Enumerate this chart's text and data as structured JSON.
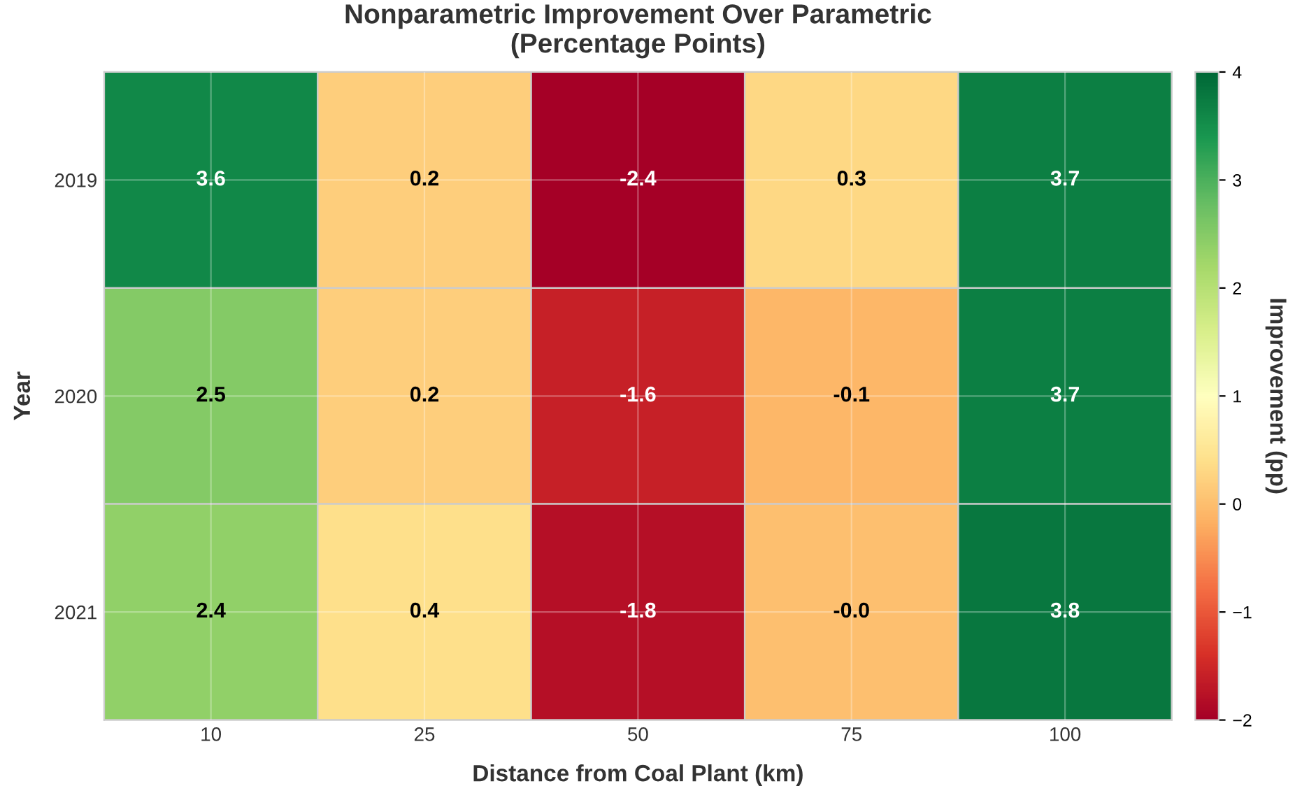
{
  "chart_data": {
    "type": "heatmap",
    "title": "Nonparametric Improvement Over Parametric\n(Percentage Points)",
    "xlabel": "Distance from Coal Plant (km)",
    "ylabel": "Year",
    "clabel": "Improvement (pp)",
    "categories": [
      "10",
      "25",
      "50",
      "75",
      "100"
    ],
    "y_categories": [
      "2019",
      "2020",
      "2021"
    ],
    "cells": [
      [
        3.6,
        0.2,
        -2.4,
        0.3,
        3.7
      ],
      [
        2.5,
        0.2,
        -1.6,
        -0.1,
        3.7
      ],
      [
        2.4,
        0.4,
        -1.8,
        -0.0,
        3.8
      ]
    ],
    "cell_labels": [
      [
        "3.6",
        "0.2",
        "-2.4",
        "0.3",
        "3.7"
      ],
      [
        "2.5",
        "0.2",
        "-1.6",
        "-0.1",
        "3.7"
      ],
      [
        "2.4",
        "0.4",
        "-1.8",
        "-0.0",
        "3.8"
      ]
    ],
    "clim": [
      -2,
      4
    ],
    "cticks": [
      -2,
      -1,
      0,
      1,
      2,
      3,
      4
    ],
    "grid": true
  }
}
